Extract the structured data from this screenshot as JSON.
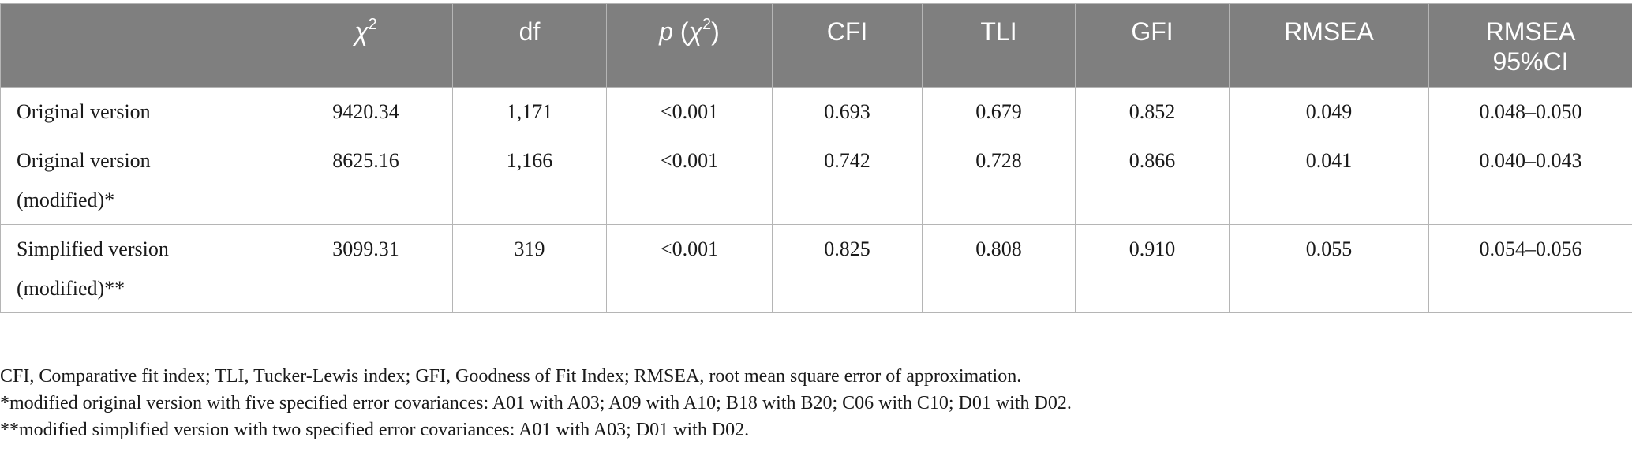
{
  "table": {
    "headers": {
      "blank": "",
      "chi2_symbol": "χ",
      "chi2_sup": "2",
      "df": "df",
      "p_italic": "p",
      "p_open": " (",
      "p_chi": "χ",
      "p_sup": "2",
      "p_close": ")",
      "cfi": "CFI",
      "tli": "TLI",
      "gfi": "GFI",
      "rmsea": "RMSEA",
      "rmsea_ci_line1": "RMSEA",
      "rmsea_ci_line2": "95%CI"
    },
    "rows": [
      {
        "label_line1": "Original version",
        "label_line2": "",
        "chi2": "9420.34",
        "df": "1,171",
        "p": "<0.001",
        "cfi": "0.693",
        "tli": "0.679",
        "gfi": "0.852",
        "rmsea": "0.049",
        "rmsea_ci": "0.048–0.050"
      },
      {
        "label_line1": "Original version",
        "label_line2": "(modified)*",
        "chi2": "8625.16",
        "df": "1,166",
        "p": "<0.001",
        "cfi": "0.742",
        "tli": "0.728",
        "gfi": "0.866",
        "rmsea": "0.041",
        "rmsea_ci": "0.040–0.043"
      },
      {
        "label_line1": "Simplified version",
        "label_line2": "(modified)**",
        "chi2": "3099.31",
        "df": "319",
        "p": "<0.001",
        "cfi": "0.825",
        "tli": "0.808",
        "gfi": "0.910",
        "rmsea": "0.055",
        "rmsea_ci": "0.054–0.056"
      }
    ]
  },
  "notes": {
    "abbreviations": "CFI, Comparative fit index; TLI, Tucker-Lewis index; GFI, Goodness of Fit Index; RMSEA, root mean square error of approximation.",
    "footnote_1": "*modified original version with five specified error covariances: A01 with A03; A09 with A10; B18 with B20; C06 with C10; D01 with D02.",
    "footnote_2": "**modified simplified version with two specified error covariances: A01 with A03; D01 with D02."
  }
}
